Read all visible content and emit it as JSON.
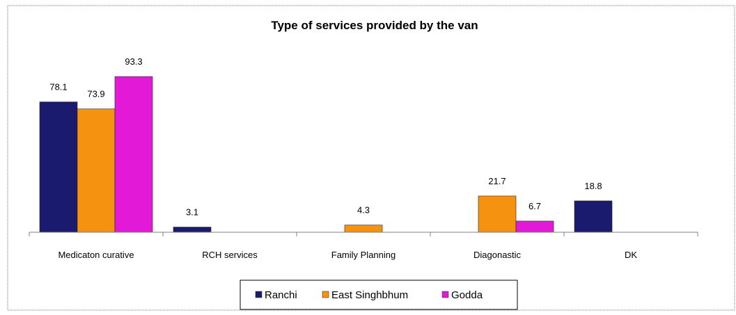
{
  "chart_data": {
    "type": "bar",
    "title": "Type of services provided by the van",
    "xlabel": "",
    "ylabel": "",
    "ylim": [
      0,
      100
    ],
    "grid": false,
    "legend_position": "bottom",
    "categories": [
      "Medicaton curative",
      "RCH services",
      "Family Planning",
      "Diagonastic",
      "DK"
    ],
    "series": [
      {
        "name": "Ranchi",
        "color": "#1a1a6e",
        "values": [
          78.1,
          3.1,
          null,
          null,
          18.8
        ]
      },
      {
        "name": "East Singhbhum",
        "color": "#f5920f",
        "values": [
          73.9,
          null,
          4.3,
          21.7,
          null
        ]
      },
      {
        "name": "Godda",
        "color": "#e21ad8",
        "values": [
          93.3,
          null,
          null,
          6.7,
          null
        ]
      }
    ]
  }
}
